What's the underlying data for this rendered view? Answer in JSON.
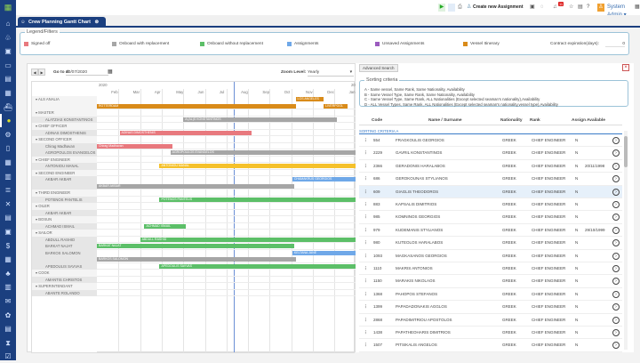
{
  "sidebar": {
    "icons": [
      "home-icon",
      "users-cog-icon",
      "id-card-icon",
      "money-icon",
      "chart-icon",
      "building-icon",
      "ship-icon",
      "user-circle-icon",
      "cogs-icon",
      "document-icon",
      "table-icon",
      "bar-chart-icon",
      "database-icon",
      "tools-icon",
      "form-icon",
      "certificate-icon",
      "dollar-icon",
      "calculator-icon",
      "team-icon",
      "book-icon",
      "mail-icon",
      "settings-icon",
      "calendar-icon",
      "hourglass-icon",
      "checklist-icon"
    ],
    "glyphs": [
      "⌂",
      "♧",
      "▣",
      "▭",
      "▤",
      "▦",
      "⛴",
      "●",
      "⚙",
      "▯",
      "▦",
      "▥",
      "≣",
      "✕",
      "▤",
      "▣",
      "$",
      "▦",
      "♣",
      "▥",
      "✉",
      "✿",
      "▤",
      "⧗",
      "☑"
    ],
    "active": 7
  },
  "topbar": {
    "create_label": "Create new Assignment",
    "notification_count": "11",
    "user": "System Admin"
  },
  "tab": {
    "title": "Crew Planning Gantt Chart"
  },
  "legend": {
    "title": "Legend/Filters",
    "items": [
      {
        "label": "Signed off",
        "color": "#e8797e"
      },
      {
        "label": "Onboard with replacement",
        "color": "#a6a6a6"
      },
      {
        "label": "Onboard without replacement",
        "color": "#5cbf68"
      },
      {
        "label": "Assignments",
        "color": "#6fa8e8"
      },
      {
        "label": "Unsaved Assignments",
        "color": "#9b5bbf"
      },
      {
        "label": "Vessel Itinerary",
        "color": "#d98b19"
      }
    ],
    "contract_label": "Contract expiration(days):",
    "contract_value": "0"
  },
  "gantt": {
    "goto_label": "Go to d:",
    "goto_date": "10/07/2020",
    "zoom_label": "Zoom Level:",
    "zoom_value": "Yearly",
    "year": "2020",
    "next_year": "20",
    "months": [
      "Feb",
      "Mar",
      "Apr",
      "May",
      "Jun",
      "Jul",
      "Aug",
      "Sep",
      "Oct",
      "Nov",
      "Dec",
      "Jan"
    ],
    "today_month": 6.3,
    "rows": [
      {
        "label": "ALS ANALIA",
        "type": "grp",
        "tall": true,
        "bars": [
          {
            "text": "LOS ANGELES",
            "start": 9.2,
            "end": 10.5,
            "color": "#d98b19",
            "line": 0
          },
          {
            "text": "ROTTERDAM",
            "start": 0,
            "end": 9.2,
            "color": "#d98b19",
            "line": 1
          },
          {
            "text": "LIVERPOOL",
            "start": 10.5,
            "end": 11.6,
            "color": "#d98b19",
            "line": 1
          }
        ]
      },
      {
        "label": "MASTER",
        "type": "grp"
      },
      {
        "label": "ALATZIAS KONSTANTINOS",
        "type": "person",
        "bars": [
          {
            "text": "A (AL)S KONSTANTINOS",
            "start": 4.0,
            "end": 11.1,
            "color": "#a6a6a6"
          }
        ]
      },
      {
        "label": "CHIEF OFFICER",
        "type": "grp"
      },
      {
        "label": "ADINAS DIMOSTHENIS",
        "type": "person",
        "bars": [
          {
            "text": "ADINAS DIMOSTHENIS",
            "start": 1.05,
            "end": 7.15,
            "color": "#e8797e"
          }
        ]
      },
      {
        "label": "SECOND OFFICER",
        "type": "grp"
      },
      {
        "label": "Chirag Madhavan",
        "type": "person",
        "bars": [
          {
            "text": "Chirag Madhavan",
            "start": 0,
            "end": 3.5,
            "color": "#e8797e"
          }
        ]
      },
      {
        "label": "AGROPOULOS EVANGELOS",
        "type": "person",
        "bars": [
          {
            "text": "AGROPOULOS EVANGELOS",
            "start": 3.4,
            "end": 12,
            "color": "#a6a6a6"
          }
        ]
      },
      {
        "label": "CHIEF ENGINEER",
        "type": "grp"
      },
      {
        "label": "ANTONIOU MANAL",
        "type": "person",
        "bars": [
          {
            "text": "ANTONIOU MANAL",
            "start": 2.9,
            "end": 12,
            "color": "#f5c12b"
          }
        ]
      },
      {
        "label": "SECOND ENGINEER",
        "type": "grp"
      },
      {
        "label": "AKBAR AKBAR",
        "type": "person",
        "tall": true,
        "bars": [
          {
            "text": "CHAMAKRUS GEORGIOS",
            "start": 9.05,
            "end": 12,
            "color": "#6fa8e8",
            "line": 0
          },
          {
            "text": "AKBAR AKBAR",
            "start": 0,
            "end": 9.15,
            "color": "#a6a6a6",
            "line": 1
          }
        ]
      },
      {
        "label": "THIRD ENGINEER",
        "type": "grp"
      },
      {
        "label": "POTENOS PANTELIS",
        "type": "person",
        "bars": [
          {
            "text": "POTENOS PANTELIS",
            "start": 2.9,
            "end": 12,
            "color": "#5cbf68"
          }
        ]
      },
      {
        "label": "OILER",
        "type": "grp"
      },
      {
        "label": "AKBAR AKBAR",
        "type": "person"
      },
      {
        "label": "BOSUN",
        "type": "grp"
      },
      {
        "label": "ACHMAD ISMAIL",
        "type": "person",
        "bars": [
          {
            "text": "ACHMAD ISMAIL",
            "start": 2.2,
            "end": 4.1,
            "color": "#5cbf68"
          }
        ]
      },
      {
        "label": "SAILOR",
        "type": "grp"
      },
      {
        "label": "ABDULL RASHID",
        "type": "person",
        "bars": [
          {
            "text": "ABDULL RASHID",
            "start": 2.0,
            "end": 12,
            "color": "#5cbf68"
          }
        ]
      },
      {
        "label": "BARKAT NAJAT",
        "type": "person",
        "bars": [
          {
            "text": "BARKAT NAJAT",
            "start": 0,
            "end": 9.15,
            "color": "#5cbf68"
          }
        ]
      },
      {
        "label": "BARKOS SALOMON",
        "type": "person",
        "tall": true,
        "bars": [
          {
            "text": "KELTANA JANE",
            "start": 9.05,
            "end": 12,
            "color": "#6fa8e8",
            "line": 0
          },
          {
            "text": "BARKOS SALOMON",
            "start": 0,
            "end": 9.2,
            "color": "#a6a6a6",
            "line": 1
          }
        ]
      },
      {
        "label": "APEDOULIS SAVVAS",
        "type": "person",
        "bars": [
          {
            "text": "APEDOULIS SAVVAS",
            "start": 2.9,
            "end": 12,
            "color": "#5cbf68"
          }
        ]
      },
      {
        "label": "COOK",
        "type": "grp"
      },
      {
        "label": "AMANTIS CHRISTOS",
        "type": "person"
      },
      {
        "label": "SUPERINTENDANT",
        "type": "grp"
      },
      {
        "label": "ABANTE ROLANDO",
        "type": "person"
      }
    ]
  },
  "panel": {
    "advanced_search": "Advanced Search",
    "sorting_title": "Sorting criteria",
    "criteria": [
      "A - Same vessel, Same Rank, Same Nationality, Availability",
      "B - Same Vessel Type, Same Rank, Same Nationality, Availability",
      "C - Same Vessel Type, Same Rank, ALL Nationalities (Except selected seaman's nationality),Availability",
      "D - ALL Vessel Types, Same Rank, ALL Nationalities (Except selected seaman's nationality,vessel type),Availability"
    ],
    "columns": [
      "Code",
      "Name / Surname",
      "Nationality",
      "Rank",
      "Assign",
      "Available"
    ],
    "group_label": "SORTING CRITERIA A",
    "rows": [
      [
        "554",
        "FRAGKOULIS GEORGIOS",
        "GREEK",
        "CHIEF ENGINEER",
        "N",
        ""
      ],
      [
        "2229",
        "GAVRIL KONSTANTINOS",
        "GREEK",
        "CHIEF ENGINEER",
        "N",
        ""
      ],
      [
        "2366",
        "GERADONIS HARALABOS",
        "GREEK",
        "CHIEF ENGINEER",
        "N",
        "20/11/1998"
      ],
      [
        "686",
        "GEROKOUNAS STYLIANOS",
        "GREEK",
        "CHIEF ENGINEER",
        "N",
        ""
      ],
      [
        "609",
        "GIAGLIS THEODOROS",
        "GREEK",
        "CHIEF ENGINEER",
        "N",
        ""
      ],
      [
        "883",
        "KAPSALIS DIMITRIOS",
        "GREEK",
        "CHIEF ENGINEER",
        "N",
        ""
      ],
      [
        "985",
        "KOMNINOS GEORGIOS",
        "GREEK",
        "CHIEF ENGINEER",
        "N",
        ""
      ],
      [
        "979",
        "KUDEMANIS STYLIANOS",
        "GREEK",
        "CHIEF ENGINEER",
        "N",
        "29/10/1999"
      ],
      [
        "980",
        "KUTEOLOS HARALABOS",
        "GREEK",
        "CHIEF ENGINEER",
        "N",
        ""
      ],
      [
        "1093",
        "MAGKASANOS GEORGIOS",
        "GREEK",
        "CHIEF ENGINEER",
        "N",
        ""
      ],
      [
        "1110",
        "MAKRIS ANTONIOS",
        "GREEK",
        "CHIEF ENGINEER",
        "N",
        ""
      ],
      [
        "1150",
        "MARAKIS NIKOLAOS",
        "GREEK",
        "CHIEF ENGINEER",
        "N",
        ""
      ],
      [
        "1368",
        "PAHOPOS STEFANOS",
        "GREEK",
        "CHIEF ENGINEER",
        "N",
        ""
      ],
      [
        "1399",
        "PAPADADONAKIS AGGLOS",
        "GREEK",
        "CHIEF ENGINEER",
        "N",
        ""
      ],
      [
        "2868",
        "PAPADIMITRIOU APOSTOLOS",
        "GREEK",
        "CHIEF ENGINEER",
        "N",
        ""
      ],
      [
        "1438",
        "PAPATHEOHARIS DIMITRIOS",
        "GREEK",
        "CHIEF ENGINEER",
        "N",
        ""
      ],
      [
        "1507",
        "PITSIKALIS ANGELOS",
        "GREEK",
        "CHIEF ENGINEER",
        "N",
        ""
      ]
    ],
    "selected_row": 4
  }
}
